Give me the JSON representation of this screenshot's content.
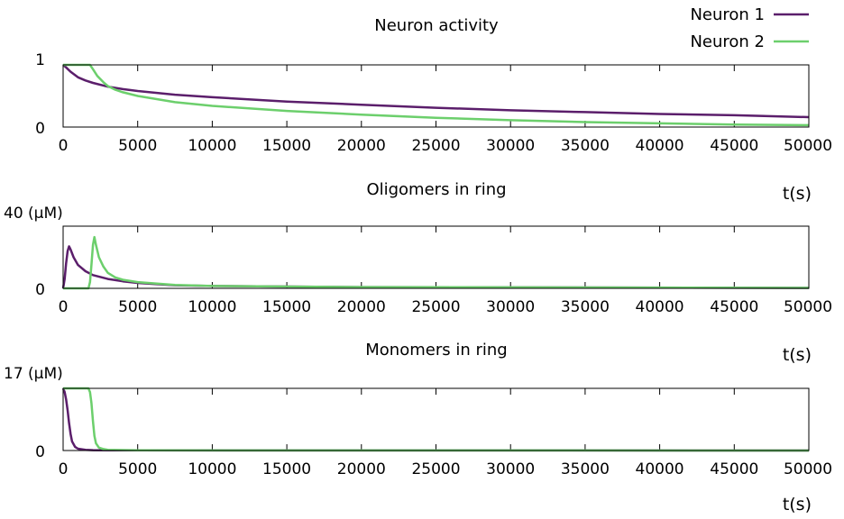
{
  "colors": {
    "neuron1": "#5b1e6b",
    "neuron2": "#6ccf6c"
  },
  "legend": {
    "placement": "top-right",
    "entries": [
      "Neuron 1",
      "Neuron 2"
    ]
  },
  "chart_data": [
    {
      "type": "line",
      "title": "Neuron activity",
      "xlabel": "",
      "ylabel": "",
      "ylim": [
        0,
        1
      ],
      "xlim": [
        0,
        50000
      ],
      "y_tick_labels": [
        "1",
        "0"
      ],
      "x_tick_labels": [
        "0",
        "5000",
        "10000",
        "15000",
        "20000",
        "25000",
        "30000",
        "35000",
        "40000",
        "45000",
        "50000"
      ],
      "grid": false,
      "series": [
        {
          "name": "Neuron 1",
          "color": "#5b1e6b",
          "x": [
            0,
            200,
            500,
            1000,
            1500,
            2000,
            3000,
            4000,
            5000,
            7500,
            10000,
            15000,
            20000,
            25000,
            30000,
            35000,
            40000,
            45000,
            50000
          ],
          "y": [
            1.0,
            0.96,
            0.89,
            0.8,
            0.75,
            0.71,
            0.65,
            0.61,
            0.58,
            0.52,
            0.48,
            0.41,
            0.36,
            0.31,
            0.27,
            0.24,
            0.21,
            0.19,
            0.16
          ]
        },
        {
          "name": "Neuron 2",
          "color": "#6ccf6c",
          "x": [
            0,
            1800,
            2000,
            2300,
            2700,
            3000,
            3500,
            4000,
            5000,
            7500,
            10000,
            15000,
            20000,
            25000,
            30000,
            35000,
            40000,
            45000,
            50000
          ],
          "y": [
            1.0,
            1.0,
            0.93,
            0.82,
            0.72,
            0.66,
            0.6,
            0.56,
            0.5,
            0.4,
            0.34,
            0.26,
            0.2,
            0.15,
            0.11,
            0.08,
            0.06,
            0.04,
            0.03
          ]
        }
      ]
    },
    {
      "type": "line",
      "title": "Oligomers in ring",
      "xlabel": "t(s)",
      "ylabel": "",
      "ylim": [
        0,
        40
      ],
      "xlim": [
        0,
        50000
      ],
      "y_tick_labels": [
        "40 (µM)",
        "0"
      ],
      "x_tick_labels": [
        "0",
        "5000",
        "10000",
        "15000",
        "20000",
        "25000",
        "30000",
        "35000",
        "40000",
        "45000",
        "50000"
      ],
      "grid": false,
      "series": [
        {
          "name": "Neuron 1",
          "color": "#5b1e6b",
          "x": [
            0,
            100,
            200,
            300,
            400,
            500,
            700,
            1000,
            1500,
            2000,
            3000,
            4000,
            5000,
            7500,
            10000,
            20000,
            50000
          ],
          "y": [
            0,
            6,
            16,
            24,
            27,
            25,
            20,
            15,
            11,
            8.5,
            6,
            4.5,
            3.5,
            2,
            1.5,
            0.8,
            0.3
          ]
        },
        {
          "name": "Neuron 2",
          "color": "#6ccf6c",
          "x": [
            0,
            1700,
            1800,
            1900,
            2000,
            2100,
            2200,
            2400,
            2700,
            3000,
            3500,
            4000,
            5000,
            7500,
            10000,
            20000,
            50000
          ],
          "y": [
            0,
            0,
            4,
            15,
            28,
            33,
            28,
            20,
            14,
            10,
            7,
            5.5,
            4,
            2.2,
            1.5,
            0.8,
            0.3
          ]
        }
      ]
    },
    {
      "type": "line",
      "title": "Monomers in ring",
      "xlabel": "t(s)",
      "ylabel": "",
      "ylim": [
        0,
        17
      ],
      "xlim": [
        0,
        50000
      ],
      "y_tick_labels": [
        "17 (µM)",
        "0"
      ],
      "x_tick_labels": [
        "0",
        "5000",
        "10000",
        "15000",
        "20000",
        "25000",
        "30000",
        "35000",
        "40000",
        "45000",
        "50000"
      ],
      "grid": false,
      "series": [
        {
          "name": "Neuron 1",
          "color": "#5b1e6b",
          "x": [
            0,
            100,
            200,
            300,
            400,
            500,
            600,
            800,
            1000,
            1500,
            2000,
            5000,
            50000
          ],
          "y": [
            17,
            16,
            14,
            11,
            7.5,
            4.5,
            2.5,
            1,
            0.5,
            0.2,
            0.1,
            0.05,
            0
          ]
        },
        {
          "name": "Neuron 2",
          "color": "#6ccf6c",
          "x": [
            0,
            1700,
            1800,
            1900,
            2000,
            2100,
            2200,
            2400,
            2700,
            3000,
            5000,
            50000
          ],
          "y": [
            17,
            17,
            16,
            13,
            8,
            4,
            2,
            0.8,
            0.4,
            0.2,
            0.05,
            0
          ]
        }
      ]
    }
  ]
}
